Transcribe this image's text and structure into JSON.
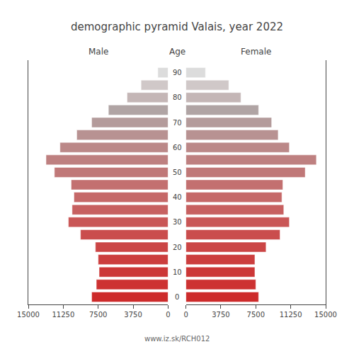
{
  "chart_data": {
    "type": "bar",
    "orientation": "horizontal",
    "title": "demographic pyramid Valais, year 2022",
    "ylabel": "Age",
    "y": [
      0,
      5,
      10,
      15,
      20,
      25,
      30,
      35,
      40,
      45,
      50,
      55,
      60,
      65,
      70,
      75,
      80,
      85,
      90
    ],
    "series": [
      {
        "name": "Male",
        "values": [
          8200,
          7700,
          7400,
          7500,
          7800,
          9400,
          10700,
          10300,
          10100,
          10400,
          12200,
          13100,
          11600,
          9800,
          8200,
          6400,
          4400,
          2900,
          1100
        ]
      },
      {
        "name": "Female",
        "values": [
          7800,
          7500,
          7400,
          7400,
          8600,
          10100,
          11100,
          10500,
          10300,
          10400,
          12800,
          14000,
          11100,
          9900,
          9200,
          7800,
          5900,
          4600,
          2100
        ]
      }
    ],
    "colors": [
      "#cd2b2b",
      "#cd3232",
      "#cc3737",
      "#cc3e3e",
      "#cb4545",
      "#ca4d4d",
      "#c95656",
      "#c76060",
      "#c56868",
      "#c37070",
      "#c07878",
      "#be8080",
      "#bb8888",
      "#b89292",
      "#b49b9b",
      "#b0a4a4",
      "#c4b6b6",
      "#d0c8c8",
      "#dcdcdc"
    ],
    "xlim": [
      0,
      15000
    ],
    "xticks": [
      0,
      3750,
      7500,
      11250,
      15000
    ],
    "ylim": [
      -3,
      95
    ],
    "yticks": [
      0,
      10,
      20,
      30,
      40,
      50,
      60,
      70,
      80,
      90
    ],
    "grid": false,
    "annotations": [
      "www.iz.sk/RCH012"
    ]
  }
}
